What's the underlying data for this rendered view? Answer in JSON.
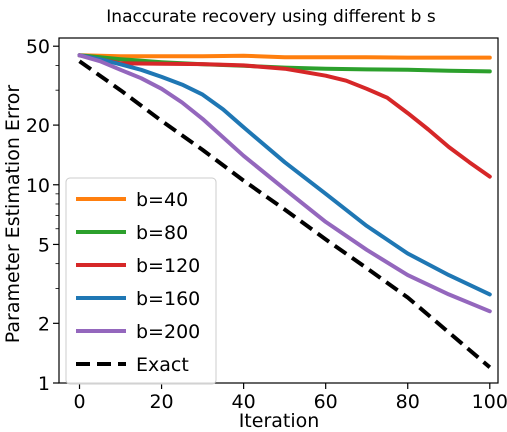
{
  "chart_data": {
    "type": "line",
    "title": "Inaccurate recovery using different b s",
    "xlabel": "Iteration",
    "ylabel": "Parameter Estimation Error",
    "xlim": [
      -5,
      102
    ],
    "ylim": [
      1,
      55
    ],
    "yscale": "log",
    "xticks": [
      0,
      20,
      40,
      60,
      80,
      100
    ],
    "yticks": [
      1,
      2,
      5,
      10,
      20,
      50
    ],
    "grid": false,
    "legend_position": "lower-left",
    "series": [
      {
        "name": "b=40",
        "color": "#ff7f0e",
        "dash": "solid",
        "x": [
          0,
          10,
          20,
          30,
          40,
          50,
          60,
          70,
          80,
          90,
          100
        ],
        "y": [
          45,
          44.5,
          44.5,
          44.5,
          44.8,
          44.0,
          44.0,
          44.0,
          43.8,
          43.8,
          43.8
        ]
      },
      {
        "name": "b=80",
        "color": "#2ca02c",
        "dash": "solid",
        "x": [
          0,
          10,
          20,
          30,
          40,
          50,
          60,
          70,
          80,
          90,
          100
        ],
        "y": [
          45,
          43.0,
          41.5,
          40.5,
          39.8,
          39.0,
          38.5,
          38.2,
          38.0,
          37.6,
          37.3
        ]
      },
      {
        "name": "b=120",
        "color": "#d62728",
        "dash": "solid",
        "x": [
          0,
          10,
          20,
          30,
          40,
          50,
          60,
          65,
          70,
          75,
          80,
          85,
          90,
          95,
          100
        ],
        "y": [
          45,
          41.0,
          40.8,
          40.6,
          40.0,
          38.5,
          35.5,
          33.5,
          30.5,
          27.5,
          23.0,
          19.0,
          15.5,
          13.0,
          11.0
        ]
      },
      {
        "name": "b=160",
        "color": "#1f77b4",
        "dash": "solid",
        "x": [
          0,
          5,
          10,
          15,
          20,
          25,
          30,
          35,
          40,
          50,
          60,
          70,
          80,
          90,
          100
        ],
        "y": [
          45,
          43.0,
          40.5,
          38.0,
          35.0,
          32.0,
          28.5,
          24.0,
          19.5,
          13.0,
          9.0,
          6.2,
          4.5,
          3.5,
          2.8
        ]
      },
      {
        "name": "b=200",
        "color": "#9467bd",
        "dash": "solid",
        "x": [
          0,
          5,
          10,
          15,
          20,
          25,
          30,
          40,
          50,
          60,
          70,
          80,
          90,
          100
        ],
        "y": [
          45,
          42.0,
          38.0,
          34.5,
          30.5,
          26.0,
          21.5,
          14.0,
          9.5,
          6.5,
          4.7,
          3.5,
          2.8,
          2.3
        ]
      },
      {
        "name": "Exact",
        "color": "#000000",
        "dash": "dashed",
        "x": [
          0,
          10,
          20,
          30,
          40,
          50,
          60,
          70,
          80,
          90,
          100
        ],
        "y": [
          42,
          30.0,
          21.0,
          15.0,
          10.5,
          7.5,
          5.3,
          3.8,
          2.7,
          1.8,
          1.2
        ]
      }
    ]
  }
}
